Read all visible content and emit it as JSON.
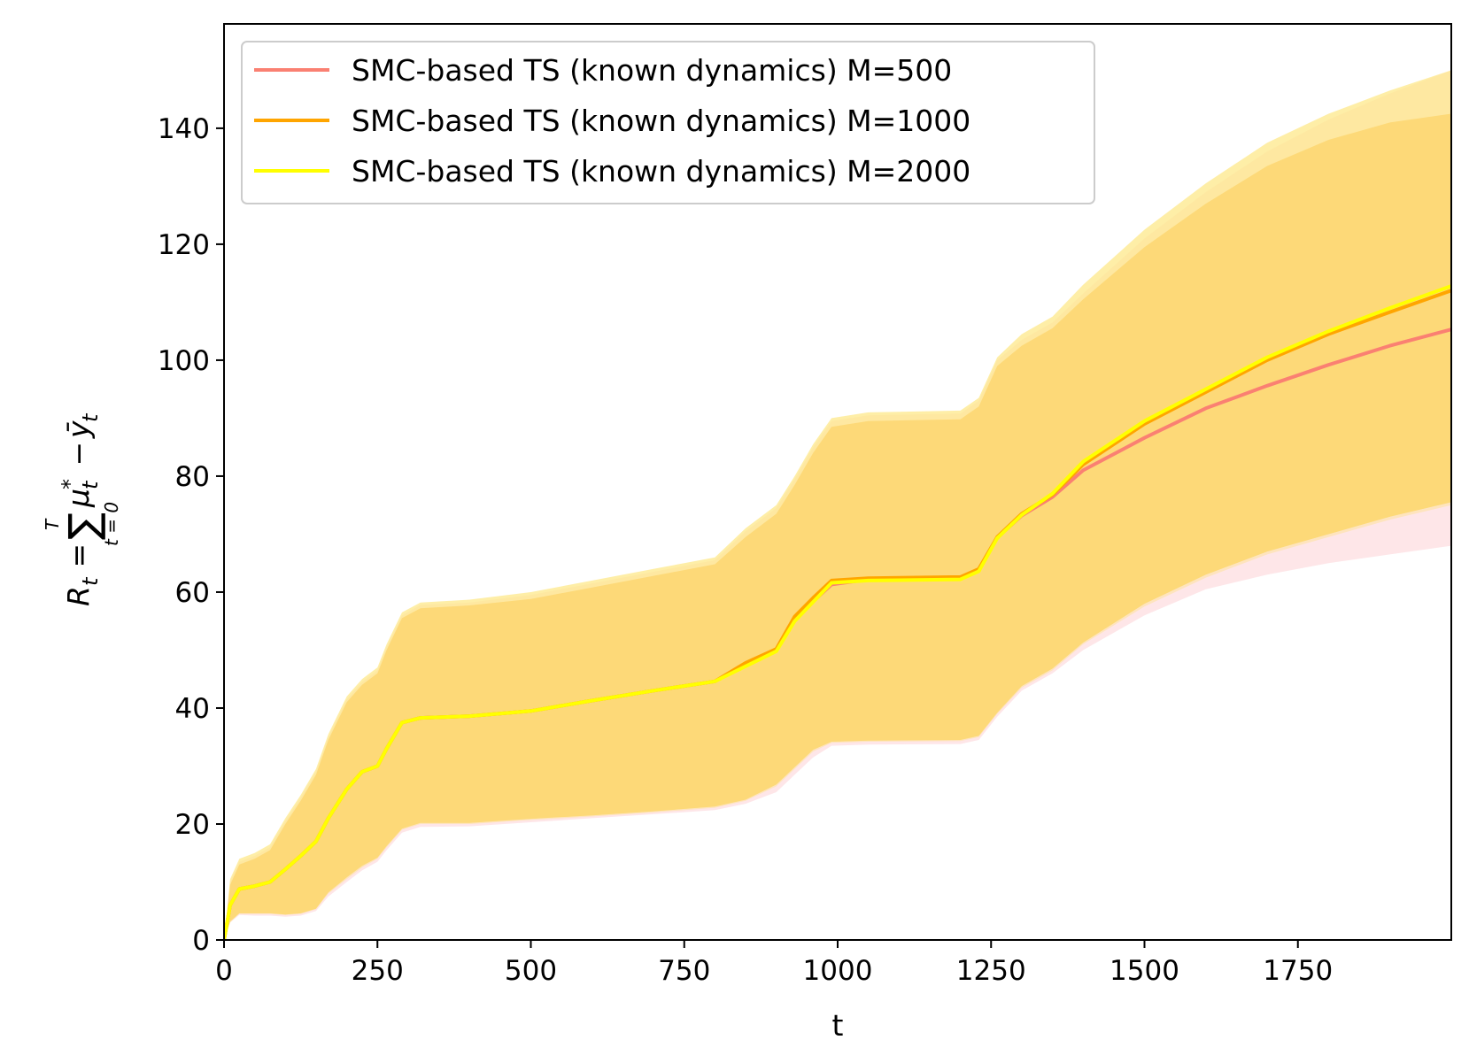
{
  "chart_data": {
    "type": "line",
    "title": "",
    "xlabel": "t",
    "ylabel": {
      "main": "R",
      "main_sub": "t",
      "eq": " = ",
      "sum_upper": "T",
      "sum_lower": "t = 0",
      "sum_symbol": "∑",
      "mu": "μ",
      "mu_sub": "t",
      "mu_sup": "*",
      "minus": " − ",
      "y": "ȳ",
      "y_sub": "t"
    },
    "xlim": [
      0,
      2000
    ],
    "ylim": [
      0,
      158
    ],
    "x_ticks": [
      0,
      250,
      500,
      750,
      1000,
      1250,
      1500,
      1750
    ],
    "x_tick_labels": [
      "0",
      "250",
      "500",
      "750",
      "1000",
      "1250",
      "1500",
      "1750"
    ],
    "y_ticks": [
      0,
      20,
      40,
      60,
      80,
      100,
      120,
      140
    ],
    "y_tick_labels": [
      "0",
      "20",
      "40",
      "60",
      "80",
      "100",
      "120",
      "140"
    ],
    "legend_position": "top-left",
    "grid": false,
    "x": [
      0,
      10,
      25,
      50,
      75,
      100,
      125,
      150,
      170,
      200,
      225,
      250,
      265,
      290,
      320,
      400,
      500,
      600,
      700,
      800,
      850,
      900,
      930,
      960,
      990,
      1050,
      1200,
      1230,
      1260,
      1300,
      1350,
      1400,
      1500,
      1600,
      1700,
      1800,
      1900,
      2000
    ],
    "series": [
      {
        "name": "SMC-based TS (known dynamics) M=500",
        "color": "#fa8072",
        "band_color": "#fddde0",
        "mean": [
          0,
          6,
          8.8,
          9.3,
          10,
          12.2,
          14.5,
          17,
          21,
          26,
          29,
          30,
          33,
          37.5,
          38.3,
          38.6,
          39.5,
          41.3,
          43,
          44.6,
          47.5,
          50,
          55.2,
          58.4,
          61.3,
          62.2,
          62.4,
          63.8,
          69.4,
          73.2,
          76.4,
          81,
          86.6,
          91.7,
          95.6,
          99.2,
          102.5,
          105.3
        ],
        "lower": [
          0,
          3,
          4.3,
          4.2,
          4.2,
          4,
          4.2,
          5,
          7.5,
          10,
          12,
          13.5,
          15.5,
          18.5,
          19.5,
          19.6,
          20.3,
          21,
          21.7,
          22.4,
          23.5,
          25.5,
          28.5,
          31.5,
          33.5,
          33.7,
          33.8,
          34.5,
          38.5,
          43,
          46,
          50,
          56,
          60.5,
          63,
          65,
          66.5,
          68
        ],
        "upper": [
          0,
          10,
          13.5,
          14.5,
          16,
          20.5,
          24.5,
          29,
          35,
          41.5,
          44.5,
          46.5,
          50.5,
          56,
          57.8,
          58.2,
          59.5,
          61.5,
          63.5,
          65.5,
          70.5,
          74.5,
          79.5,
          85,
          89.5,
          90.5,
          90.8,
          93,
          100,
          103.5,
          106.5,
          111.5,
          121,
          129,
          136,
          141.5,
          146,
          150
        ]
      },
      {
        "name": "SMC-based TS (known dynamics) M=1000",
        "color": "#ffa500",
        "band_color": "#fde3b0",
        "mean": [
          0,
          6,
          8.8,
          9.3,
          10,
          12.2,
          14.5,
          17,
          21,
          26,
          29,
          30,
          33,
          37.5,
          38.3,
          38.6,
          39.5,
          41.3,
          43,
          44.6,
          47.8,
          50.2,
          55.8,
          59,
          62,
          62.4,
          62.6,
          64,
          69.5,
          73.5,
          76.8,
          82,
          89,
          94.5,
          100,
          104.5,
          108.3,
          112
        ],
        "lower": [
          0,
          3,
          4.5,
          4.5,
          4.5,
          4.3,
          4.5,
          5.3,
          8,
          10.5,
          12.5,
          14,
          16,
          19,
          20,
          20,
          20.7,
          21.3,
          22,
          22.8,
          24,
          26.5,
          29.5,
          32.5,
          34,
          34.2,
          34.3,
          35,
          39,
          43.5,
          46.5,
          51,
          57.5,
          62.5,
          66.5,
          69.5,
          72.5,
          75
        ],
        "upper": [
          0,
          9.5,
          13,
          14,
          15.5,
          20,
          24,
          28.5,
          34.5,
          41,
          44,
          46,
          50,
          55.5,
          57.2,
          57.7,
          58.8,
          60.8,
          62.8,
          64.8,
          69.5,
          73.5,
          78.5,
          84,
          88.5,
          89.5,
          89.8,
          92,
          99,
          102.5,
          105.5,
          110.5,
          119.5,
          127,
          133.5,
          138,
          141,
          142.5
        ]
      },
      {
        "name": "SMC-based TS (known dynamics) M=2000",
        "color": "#ffff00",
        "band_color": "#fde88a",
        "mean": [
          0,
          6,
          8.8,
          9.3,
          10,
          12.2,
          14.5,
          17,
          21,
          26,
          29,
          30,
          33,
          37.5,
          38.3,
          38.6,
          39.5,
          41.3,
          43,
          44.6,
          47.2,
          49.8,
          55,
          58.3,
          61.6,
          62,
          62.2,
          63.6,
          69.3,
          73.3,
          77,
          82.5,
          89.5,
          95,
          100.5,
          105,
          109,
          112.8
        ],
        "lower": [
          0,
          3.2,
          4.6,
          4.6,
          4.6,
          4.4,
          4.6,
          5.4,
          8.2,
          10.8,
          12.8,
          14.2,
          16.2,
          19.2,
          20.2,
          20.2,
          20.9,
          21.5,
          22.2,
          23,
          24.2,
          26.8,
          29.8,
          32.8,
          34.2,
          34.4,
          34.5,
          35.2,
          39.2,
          43.8,
          46.8,
          51.3,
          58,
          63,
          67,
          70,
          73,
          75.5
        ],
        "upper": [
          0,
          10.5,
          14,
          15,
          16.5,
          21,
          25,
          29.5,
          35.5,
          42,
          45,
          47,
          51,
          56.5,
          58.2,
          58.7,
          60,
          62,
          64,
          66,
          71,
          75,
          80,
          85.5,
          90,
          91,
          91.3,
          93.5,
          100.5,
          104.5,
          107.5,
          113,
          122.5,
          130.5,
          137.5,
          142.5,
          146.5,
          150
        ]
      }
    ],
    "overlap_band_color": "#fdd978"
  }
}
